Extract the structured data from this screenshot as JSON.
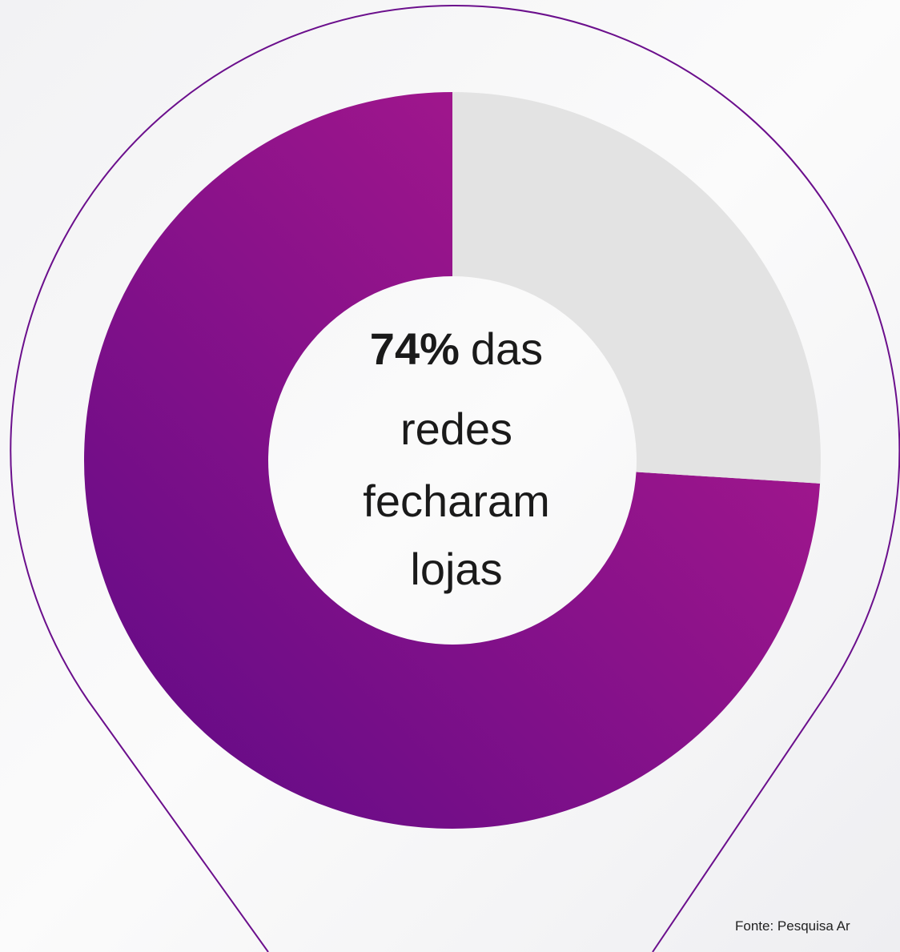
{
  "chart_data": {
    "type": "donut",
    "values": [
      74,
      26
    ],
    "value_labels": [
      "74%"
    ],
    "colors": [
      "#8e0f8e",
      "#e3e3e3"
    ],
    "center_text": [
      "das",
      "redes",
      "fecharam",
      "lojas"
    ],
    "source": "Fonte: Pesquisa Ar"
  }
}
